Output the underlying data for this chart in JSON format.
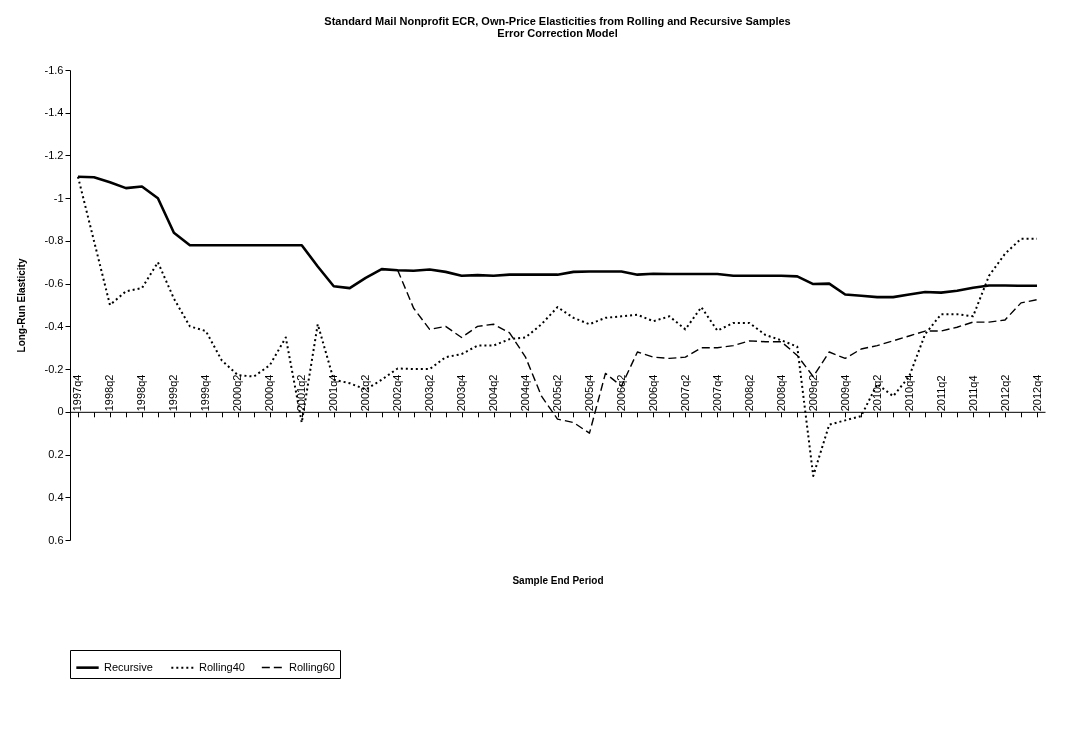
{
  "chart_data": {
    "type": "line",
    "title": "Standard Mail Nonprofit ECR, Own-Price Elasticities from Rolling and Recursive Samples",
    "subtitle": "Error Correction Model",
    "xlabel": "Sample End Period",
    "ylabel": "Long-Run Elasticity",
    "categories": [
      "1997q4",
      null,
      "1998q2",
      null,
      "1998q4",
      null,
      "1999q2",
      null,
      "1999q4",
      null,
      "2000q2",
      null,
      "2000q4",
      null,
      "2001q2",
      null,
      "2001q4",
      null,
      "2002q2",
      null,
      "2002q4",
      null,
      "2003q2",
      null,
      "2003q4",
      null,
      "2004q2",
      null,
      "2004q4",
      null,
      "2005q2",
      null,
      "2005q4",
      null,
      "2006q2",
      null,
      "2006q4",
      null,
      "2007q2",
      null,
      "2007q4",
      null,
      "2008q2",
      null,
      "2008q4",
      null,
      "2009q2",
      null,
      "2009q4",
      null,
      "2010q2",
      null,
      "2010q4",
      null,
      "2011q2",
      null,
      "2011q4",
      null,
      "2012q2",
      null,
      "2012q4"
    ],
    "series": [
      {
        "name": "Recursive",
        "color": "#000000",
        "line_style": "solid",
        "values": [
          -1.1,
          -1.098,
          -1.075,
          -1.047,
          -1.055,
          -1.0,
          -0.838,
          -0.78,
          -0.78,
          -0.78,
          -0.78,
          -0.78,
          -0.78,
          -0.78,
          -0.78,
          -0.68,
          -0.588,
          -0.579,
          -0.627,
          -0.668,
          -0.663,
          -0.66,
          -0.666,
          -0.655,
          -0.637,
          -0.64,
          -0.637,
          -0.642,
          -0.642,
          -0.642,
          -0.642,
          -0.655,
          -0.657,
          -0.657,
          -0.657,
          -0.642,
          -0.646,
          -0.645,
          -0.645,
          -0.645,
          -0.645,
          -0.637,
          -0.637,
          -0.637,
          -0.637,
          -0.634,
          -0.598,
          -0.6,
          -0.549,
          -0.543,
          -0.537,
          -0.537,
          -0.549,
          -0.561,
          -0.558,
          -0.567,
          -0.581,
          -0.591,
          -0.591,
          -0.59,
          -0.59
        ]
      },
      {
        "name": "Rolling40",
        "color": "#000000",
        "line_style": "dotted",
        "values": [
          -1.1,
          -0.8,
          -0.5,
          -0.564,
          -0.579,
          -0.7,
          -0.53,
          -0.4,
          -0.378,
          -0.24,
          -0.172,
          -0.165,
          -0.218,
          -0.348,
          0.05,
          -0.41,
          -0.15,
          -0.134,
          -0.104,
          -0.15,
          -0.203,
          -0.2,
          -0.2,
          -0.256,
          -0.27,
          -0.31,
          -0.31,
          -0.34,
          -0.348,
          -0.41,
          -0.49,
          -0.44,
          -0.41,
          -0.44,
          -0.447,
          -0.454,
          -0.424,
          -0.447,
          -0.386,
          -0.49,
          -0.38,
          -0.416,
          -0.416,
          -0.36,
          -0.335,
          -0.305,
          0.3,
          0.06,
          0.04,
          0.02,
          -0.13,
          -0.073,
          -0.165,
          -0.363,
          -0.457,
          -0.457,
          -0.447,
          -0.637,
          -0.74,
          -0.81,
          -0.81
        ]
      },
      {
        "name": "Rolling60",
        "color": "#000000",
        "line_style": "dashed",
        "values": [
          null,
          null,
          null,
          null,
          null,
          null,
          null,
          null,
          null,
          null,
          null,
          null,
          null,
          null,
          null,
          null,
          null,
          null,
          null,
          null,
          -0.663,
          -0.485,
          -0.386,
          -0.4,
          -0.348,
          -0.4,
          -0.41,
          -0.37,
          -0.256,
          -0.073,
          0.034,
          0.05,
          0.1,
          -0.18,
          -0.12,
          -0.28,
          -0.256,
          -0.25,
          -0.256,
          -0.3,
          -0.3,
          -0.31,
          -0.332,
          -0.328,
          -0.328,
          -0.264,
          -0.165,
          -0.28,
          -0.25,
          -0.294,
          -0.31,
          -0.332,
          -0.355,
          -0.378,
          -0.378,
          -0.396,
          -0.42,
          -0.42,
          -0.43,
          -0.51,
          -0.525
        ]
      }
    ],
    "ylim": [
      0.6,
      -1.6
    ],
    "yticks": [
      -1.6,
      -1.4,
      -1.2,
      -1,
      -0.8,
      -0.6,
      -0.4,
      -0.2,
      0,
      0.2,
      0.4,
      0.6
    ],
    "grid": false,
    "legend": "bottom"
  }
}
